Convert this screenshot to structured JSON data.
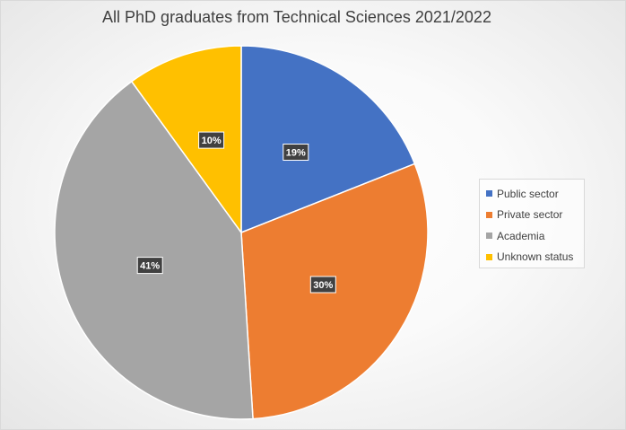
{
  "chart_data": {
    "type": "pie",
    "title": "All PhD graduates from Technical Sciences 2021/2022",
    "categories": [
      "Public sector",
      "Private sector",
      "Academia",
      "Unknown status"
    ],
    "values": [
      19,
      30,
      41,
      10
    ],
    "labels": [
      "19%",
      "30%",
      "41%",
      "10%"
    ],
    "colors": [
      "#4472C4",
      "#ED7D31",
      "#A5A5A5",
      "#FFC000"
    ],
    "legend": "right",
    "start_angle_deg": 0,
    "direction": "clockwise"
  }
}
